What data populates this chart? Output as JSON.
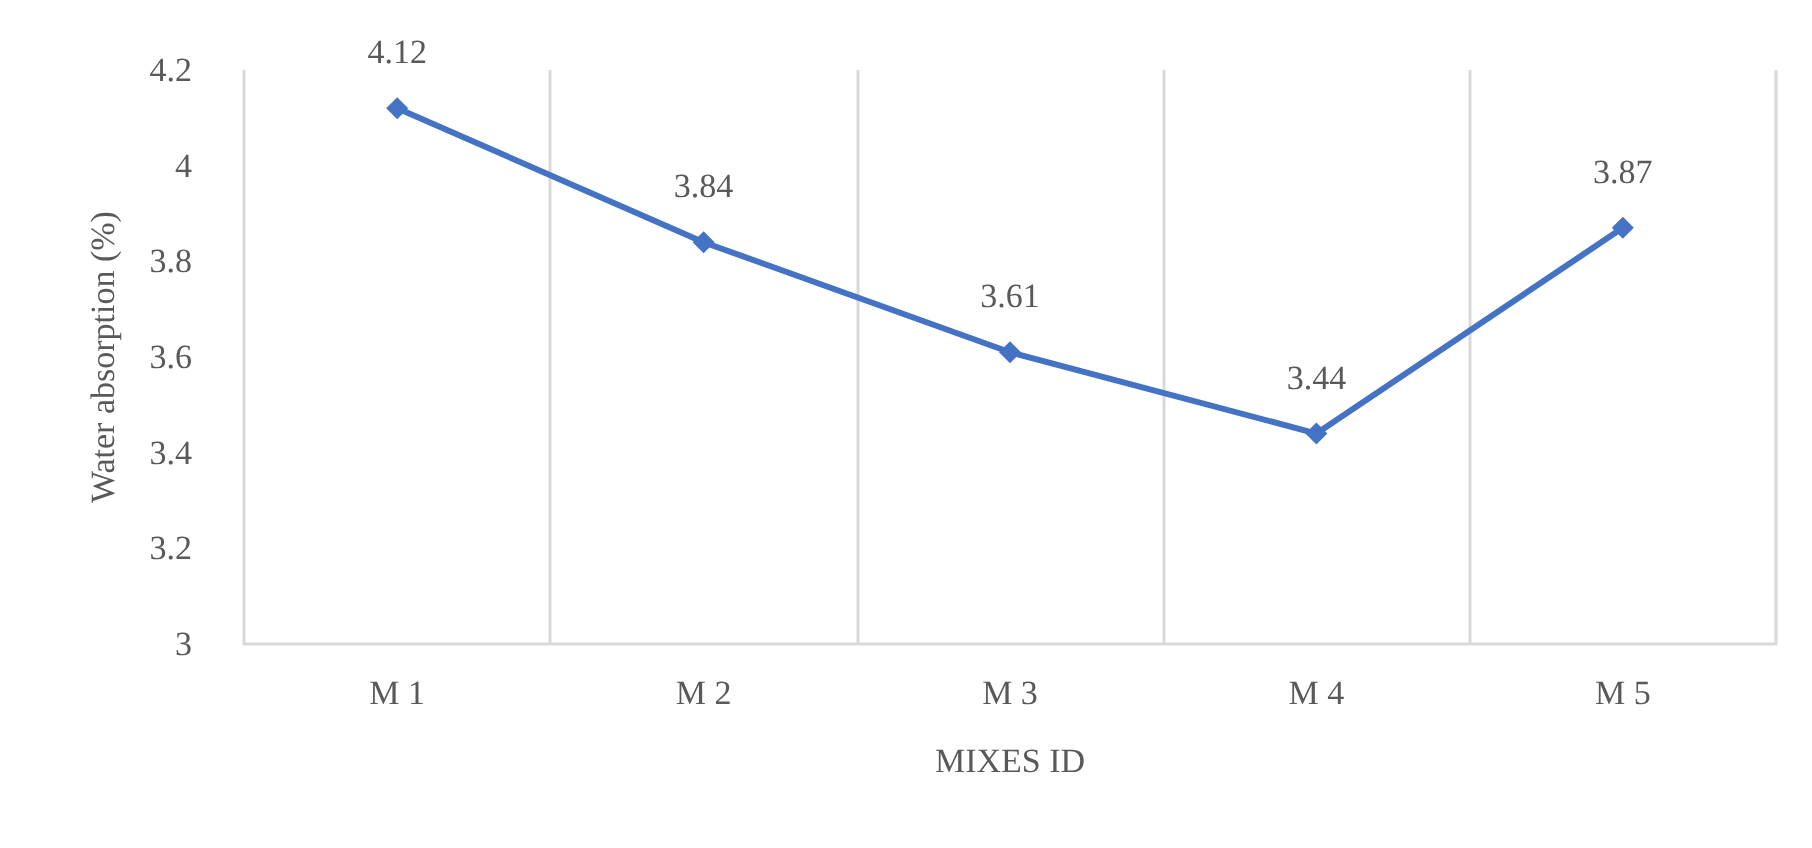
{
  "chart_data": {
    "type": "line",
    "xlabel": "MIXES ID",
    "ylabel": "Water absorption (%)",
    "categories": [
      "M 1",
      "M 2",
      "M 3",
      "M 4",
      "M 5"
    ],
    "series": [
      {
        "color": "#4472c4",
        "values": [
          4.12,
          3.84,
          3.61,
          3.44,
          3.87
        ]
      }
    ],
    "ylim": [
      3,
      4.2
    ],
    "yticks": [
      3,
      3.2,
      3.4,
      3.6,
      3.8,
      4,
      4.2
    ],
    "grid": "x",
    "marker": "diamond",
    "line_style": "solid",
    "data_labels": true
  }
}
